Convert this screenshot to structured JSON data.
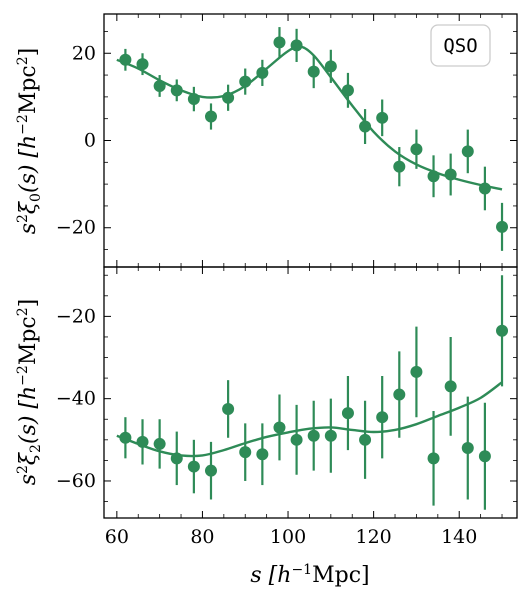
{
  "chart_data": {
    "type": "scatter",
    "legend_text": "QSO",
    "legend_position": "top-right",
    "color": "#2e8b57",
    "xlabel": "s [h⁻¹Mpc]",
    "xticks": [
      60,
      80,
      100,
      120,
      140
    ],
    "xlim": [
      57,
      153.5
    ],
    "panels": [
      {
        "name": "monopole",
        "ylabel": "s²ξ₀(s) [h⁻²Mpc²]",
        "ylim": [
          -29,
          29
        ],
        "yticks": [
          20,
          0,
          -20
        ],
        "data": {
          "x": [
            62,
            66,
            70,
            74,
            78,
            82,
            86,
            90,
            94,
            98,
            102,
            106,
            110,
            114,
            118,
            122,
            126,
            130,
            134,
            138,
            142,
            146,
            150
          ],
          "y": [
            18.5,
            17.5,
            12.5,
            11.5,
            9.5,
            5.5,
            9.8,
            13.5,
            15.5,
            22.5,
            21.8,
            15.8,
            17.0,
            11.5,
            3.2,
            5.2,
            -6.0,
            -2.0,
            -8.2,
            -7.8,
            -2.5,
            -11.0,
            -19.8
          ],
          "err": [
            2.5,
            2.5,
            2.5,
            2.5,
            2.8,
            3.0,
            3.0,
            3.0,
            3.0,
            3.5,
            3.8,
            3.8,
            3.8,
            4.0,
            4.0,
            4.2,
            4.5,
            4.5,
            4.8,
            4.8,
            5.0,
            5.0,
            5.5
          ]
        },
        "model": {
          "x": [
            60,
            65,
            70,
            75,
            80,
            85,
            90,
            95,
            100,
            103,
            106,
            110,
            115,
            120,
            125,
            130,
            135,
            140,
            145,
            150
          ],
          "y": [
            18.5,
            16.5,
            13.8,
            11.5,
            10.0,
            10.2,
            12.5,
            16.5,
            20.5,
            21.5,
            19.5,
            14.5,
            8.0,
            2.0,
            -2.5,
            -5.5,
            -7.5,
            -9.0,
            -10.2,
            -11.2
          ]
        }
      },
      {
        "name": "quadrupole",
        "ylabel": "s²ξ₂(s) [h⁻²Mpc²]",
        "ylim": [
          -69,
          -8
        ],
        "yticks": [
          -20,
          -40,
          -60
        ],
        "data": {
          "x": [
            62,
            66,
            70,
            74,
            78,
            82,
            86,
            90,
            94,
            98,
            102,
            106,
            110,
            114,
            118,
            122,
            126,
            130,
            134,
            138,
            142,
            146,
            150
          ],
          "y": [
            -49.5,
            -50.5,
            -51.0,
            -54.5,
            -56.5,
            -57.5,
            -42.5,
            -53.0,
            -53.5,
            -47.0,
            -50.0,
            -49.0,
            -49.0,
            -43.5,
            -50.0,
            -44.5,
            -39.0,
            -33.5,
            -54.5,
            -37.0,
            -52.0,
            -54.0,
            -23.5
          ],
          "err": [
            5.0,
            5.5,
            6.0,
            6.5,
            6.5,
            7.0,
            7.0,
            7.0,
            7.5,
            8.0,
            8.5,
            8.5,
            9.0,
            9.0,
            9.5,
            10.0,
            10.5,
            11.0,
            11.5,
            12.0,
            12.5,
            13.0,
            13.5
          ]
        },
        "model": {
          "x": [
            60,
            65,
            70,
            75,
            80,
            85,
            90,
            95,
            100,
            105,
            110,
            115,
            120,
            125,
            130,
            135,
            140,
            145,
            150
          ],
          "y": [
            -49.0,
            -51.0,
            -52.8,
            -53.8,
            -53.8,
            -52.5,
            -50.8,
            -49.3,
            -48.2,
            -47.3,
            -47.0,
            -47.6,
            -48.1,
            -47.6,
            -46.2,
            -44.2,
            -42.2,
            -39.8,
            -36.0
          ]
        }
      }
    ]
  }
}
